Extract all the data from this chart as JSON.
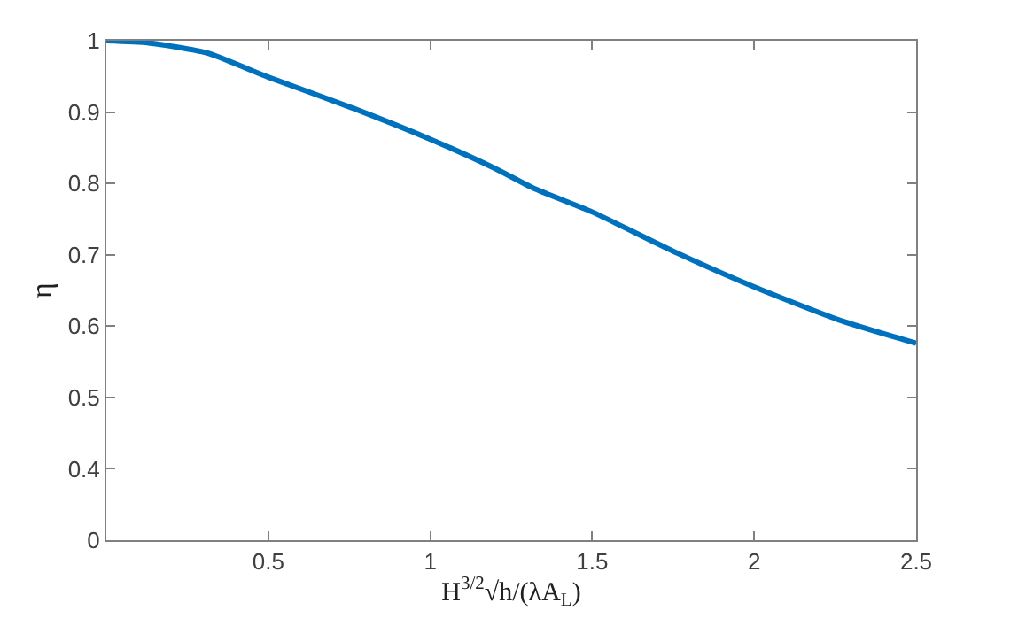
{
  "chart_data": {
    "type": "line",
    "xlabel": "H$^{3/2}$√h/(λA$_{L}$)",
    "ylabel": "η",
    "x": [
      0,
      0.13,
      0.31,
      0.5,
      0.77,
      1.0,
      1.2,
      1.32,
      1.5,
      1.75,
      2.0,
      2.26,
      2.5
    ],
    "series": [
      {
        "color": "#0072bd",
        "values": [
          1.0,
          0.997,
          0.983,
          0.949,
          0.904,
          0.862,
          0.821,
          0.793,
          0.76,
          0.705,
          0.655,
          0.609,
          0.576
        ]
      }
    ],
    "xlim": [
      0,
      2.5
    ],
    "xticks": [
      0.5,
      1,
      1.5,
      2,
      2.5
    ],
    "ylim": [
      0.3,
      1
    ],
    "yticks": [
      {
        "value": 0.3,
        "label": "0"
      },
      0.4,
      0.5,
      0.6,
      0.7,
      0.8,
      0.9,
      1
    ],
    "marker": "none",
    "line_style": "solid"
  }
}
